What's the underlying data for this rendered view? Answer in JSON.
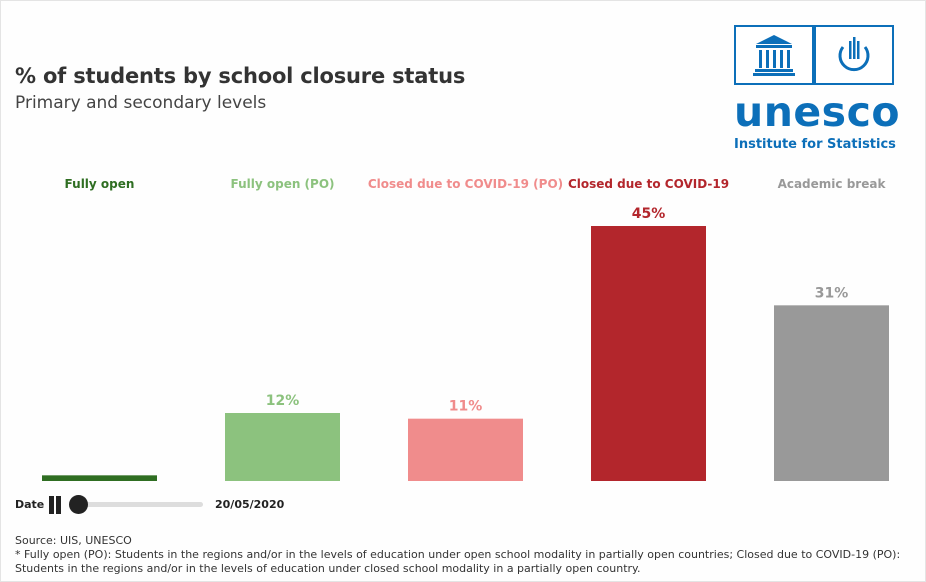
{
  "header": {
    "title": "% of students by school closure status",
    "subtitle": "Primary and secondary levels"
  },
  "logo": {
    "wordmark": "unesco",
    "subtitle": "Institute for Statistics",
    "brand_color": "#0c6fb9"
  },
  "chart_data": {
    "type": "bar",
    "categories": [
      "Fully open",
      "Fully open (PO)",
      "Closed due to COVID-19 (PO)",
      "Closed due to COVID-19",
      "Academic break"
    ],
    "values": [
      1,
      12,
      11,
      45,
      31
    ],
    "data_labels": [
      "",
      "12%",
      "11%",
      "45%",
      "31%"
    ],
    "colors": [
      "#2f6e22",
      "#8cc27e",
      "#f08c8c",
      "#b3262c",
      "#999999"
    ],
    "ylim": [
      0,
      45
    ],
    "grid": false,
    "legend": "category labels above bars"
  },
  "controls": {
    "date_label": "Date",
    "current_date": "20/05/2020",
    "progress": 0.0,
    "state": "playing"
  },
  "footer": {
    "source": "Source: UIS, UNESCO",
    "note": "* Fully open (PO): Students in the regions and/or in the levels of education under open school modality in partially open countries; Closed due to COVID-19 (PO): Students in the regions and/or in the levels of education under closed school modality in a partially open country."
  }
}
